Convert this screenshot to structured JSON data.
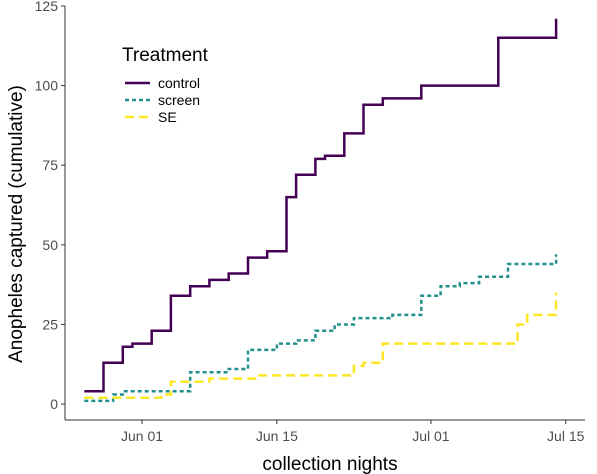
{
  "chart_data": {
    "type": "line",
    "step": true,
    "title": "",
    "xlabel": "collection nights",
    "ylabel": "Anopheles captured (cumulative)",
    "x_ticks": [
      {
        "date": "2021-06-01",
        "label": "Jun 01"
      },
      {
        "date": "2021-06-15",
        "label": "Jun 15"
      },
      {
        "date": "2021-07-01",
        "label": "Jul 01"
      },
      {
        "date": "2021-07-15",
        "label": "Jul 15"
      }
    ],
    "xlim": [
      "2021-05-24",
      "2021-07-17"
    ],
    "ylim": [
      -5,
      125
    ],
    "y_ticks": [
      0,
      25,
      50,
      75,
      100,
      125
    ],
    "grid": false,
    "legend": {
      "title": "Treatment",
      "position": "top-left"
    },
    "series": [
      {
        "name": "control",
        "color": "#440154",
        "dash": "solid",
        "points": [
          [
            "2021-05-26",
            4
          ],
          [
            "2021-05-28",
            13
          ],
          [
            "2021-05-30",
            18
          ],
          [
            "2021-05-31",
            19
          ],
          [
            "2021-06-02",
            23
          ],
          [
            "2021-06-04",
            34
          ],
          [
            "2021-06-06",
            37
          ],
          [
            "2021-06-08",
            39
          ],
          [
            "2021-06-10",
            41
          ],
          [
            "2021-06-12",
            46
          ],
          [
            "2021-06-14",
            48
          ],
          [
            "2021-06-16",
            65
          ],
          [
            "2021-06-17",
            72
          ],
          [
            "2021-06-19",
            77
          ],
          [
            "2021-06-20",
            78
          ],
          [
            "2021-06-22",
            85
          ],
          [
            "2021-06-24",
            94
          ],
          [
            "2021-06-26",
            96
          ],
          [
            "2021-06-30",
            100
          ],
          [
            "2021-07-08",
            115
          ],
          [
            "2021-07-14",
            121
          ]
        ]
      },
      {
        "name": "screen",
        "color": "#21908C",
        "dash": "dotted",
        "points": [
          [
            "2021-05-26",
            1
          ],
          [
            "2021-05-29",
            3
          ],
          [
            "2021-05-30",
            4
          ],
          [
            "2021-06-03",
            4
          ],
          [
            "2021-06-06",
            10
          ],
          [
            "2021-06-10",
            11
          ],
          [
            "2021-06-12",
            17
          ],
          [
            "2021-06-15",
            19
          ],
          [
            "2021-06-17",
            20
          ],
          [
            "2021-06-19",
            23
          ],
          [
            "2021-06-21",
            25
          ],
          [
            "2021-06-23",
            27
          ],
          [
            "2021-06-27",
            28
          ],
          [
            "2021-06-30",
            34
          ],
          [
            "2021-07-02",
            37
          ],
          [
            "2021-07-04",
            38
          ],
          [
            "2021-07-06",
            40
          ],
          [
            "2021-07-09",
            44
          ],
          [
            "2021-07-14",
            47
          ]
        ]
      },
      {
        "name": "SE",
        "color": "#FDE725",
        "dash": "dashed",
        "points": [
          [
            "2021-05-26",
            2
          ],
          [
            "2021-06-03",
            3
          ],
          [
            "2021-06-04",
            7
          ],
          [
            "2021-06-06",
            7
          ],
          [
            "2021-06-08",
            8
          ],
          [
            "2021-06-13",
            9
          ],
          [
            "2021-06-23",
            12
          ],
          [
            "2021-06-24",
            13
          ],
          [
            "2021-06-26",
            19
          ],
          [
            "2021-07-10",
            25
          ],
          [
            "2021-07-11",
            28
          ],
          [
            "2021-07-14",
            35
          ]
        ]
      }
    ]
  }
}
